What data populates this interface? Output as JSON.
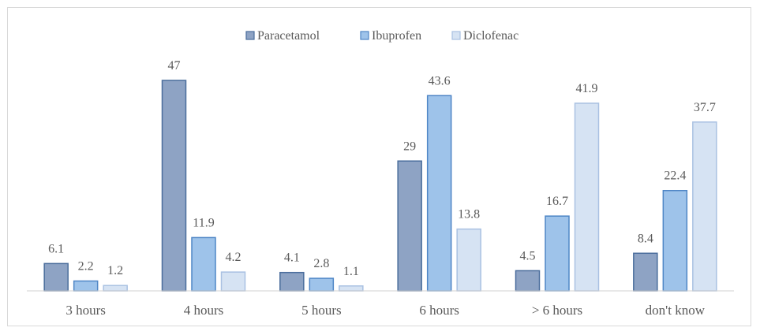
{
  "chart_data": {
    "type": "bar",
    "categories": [
      "3 hours",
      "4 hours",
      "5 hours",
      "6 hours",
      "> 6 hours",
      "don't know"
    ],
    "series": [
      {
        "name": "Paracetamol",
        "values": [
          6.1,
          47,
          4.1,
          29,
          4.5,
          8.4
        ],
        "labels": [
          "6.1",
          "47",
          "4.1",
          "29",
          "4.5",
          "8.4"
        ],
        "color": "#8eA3c4"
      },
      {
        "name": "Ibuprofen",
        "values": [
          2.2,
          11.9,
          2.8,
          43.6,
          16.7,
          22.4
        ],
        "labels": [
          "2.2",
          "11.9",
          "2.8",
          "43.6",
          "16.7",
          "22.4"
        ],
        "color": "#9ec3ea"
      },
      {
        "name": "Diclofenac",
        "values": [
          1.2,
          4.2,
          1.1,
          13.8,
          41.9,
          37.7
        ],
        "labels": [
          "1.2",
          "4.2",
          "1.1",
          "13.8",
          "41.9",
          "37.7"
        ],
        "color": "#d6e3f3"
      }
    ],
    "title": "",
    "xlabel": "",
    "ylabel": "",
    "ylim": [
      0,
      47
    ],
    "grid": false,
    "legend_position": "top-center",
    "stroke_colors": [
      "#4a6d9c",
      "#4f86c6",
      "#a9c1e2"
    ]
  }
}
